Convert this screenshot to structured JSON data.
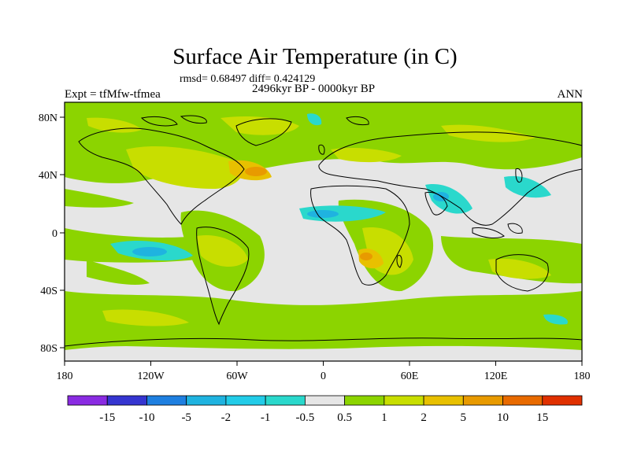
{
  "title": "Surface Air Temperature (in C)",
  "stats_line": "rmsd= 0.68497 diff= 0.424129",
  "period_line": "2496kyr BP - 0000kyr BP",
  "experiment_label": "Expt = tfMfw-tfmea",
  "season_label": "ANN",
  "x_ticks": [
    "180",
    "120W",
    "60W",
    "0",
    "60E",
    "120E",
    "180"
  ],
  "y_ticks": [
    "80N",
    "40N",
    "0",
    "40S",
    "80S"
  ],
  "colorbar": {
    "labels": [
      "-15",
      "-10",
      "-5",
      "-2",
      "-1",
      "-0.5",
      "0.5",
      "1",
      "2",
      "5",
      "10",
      "15"
    ],
    "colors": [
      "#8a2be2",
      "#3535d0",
      "#1e7fe0",
      "#1fb3e0",
      "#22cce8",
      "#2ad8cc",
      "#e6e6e6",
      "#8cd400",
      "#c8de00",
      "#e8c000",
      "#e89a00",
      "#e86a00",
      "#e03000"
    ]
  }
}
